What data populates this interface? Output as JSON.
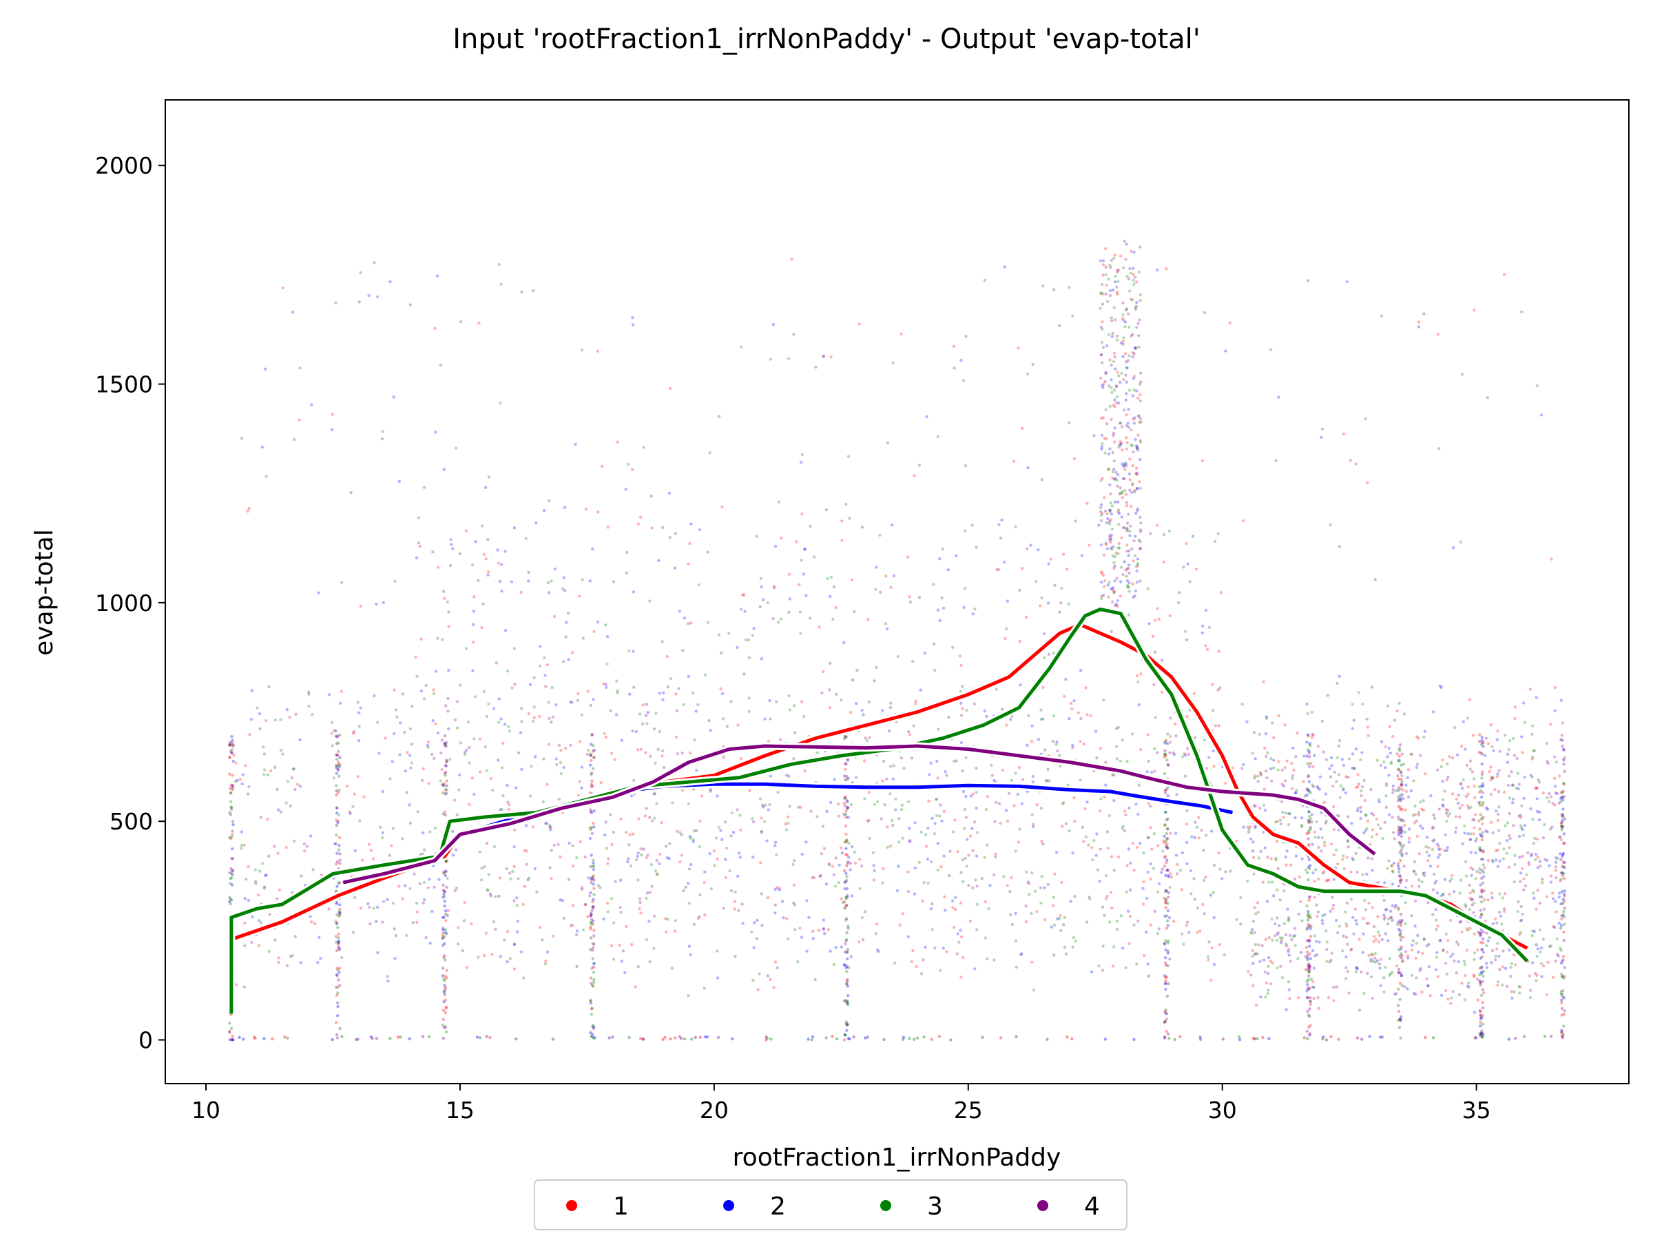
{
  "chart_data": {
    "type": "scatter",
    "title": "Input 'rootFraction1_irrNonPaddy' - Output 'evap-total'",
    "xlabel": "rootFraction1_irrNonPaddy",
    "ylabel": "evap-total",
    "xlim": [
      9.2,
      38.0
    ],
    "ylim": [
      -100,
      2150
    ],
    "xticks": [
      10,
      15,
      20,
      25,
      30,
      35
    ],
    "yticks": [
      0,
      500,
      1000,
      1500,
      2000
    ],
    "grid": false,
    "legend": {
      "placement": "bottom-center",
      "columns": 4
    },
    "series": [
      {
        "name": "1",
        "color": "#ff0000",
        "trend": [
          [
            10.5,
            230
          ],
          [
            11.5,
            270
          ],
          [
            12.6,
            330
          ],
          [
            13.5,
            370
          ],
          [
            14.7,
            420
          ],
          [
            15,
            470
          ],
          [
            16,
            500
          ],
          [
            17,
            530
          ],
          [
            18,
            560
          ],
          [
            19,
            590
          ],
          [
            20,
            605
          ],
          [
            21,
            650
          ],
          [
            22,
            690
          ],
          [
            23,
            720
          ],
          [
            24,
            750
          ],
          [
            25,
            790
          ],
          [
            25.8,
            830
          ],
          [
            26.3,
            880
          ],
          [
            26.8,
            930
          ],
          [
            27.2,
            950
          ],
          [
            27.6,
            930
          ],
          [
            28,
            910
          ],
          [
            28.5,
            880
          ],
          [
            29,
            830
          ],
          [
            29.5,
            750
          ],
          [
            30,
            650
          ],
          [
            30.3,
            570
          ],
          [
            30.6,
            510
          ],
          [
            31,
            470
          ],
          [
            31.5,
            450
          ],
          [
            32,
            400
          ],
          [
            32.5,
            360
          ],
          [
            33,
            350
          ],
          [
            33.5,
            340
          ],
          [
            34,
            330
          ],
          [
            34.5,
            310
          ],
          [
            35,
            270
          ],
          [
            35.5,
            240
          ],
          [
            36,
            210
          ]
        ]
      },
      {
        "name": "2",
        "color": "#0000ff",
        "trend": [
          [
            15,
            470
          ],
          [
            16,
            505
          ],
          [
            17,
            540
          ],
          [
            18,
            565
          ],
          [
            19,
            580
          ],
          [
            20,
            585
          ],
          [
            21,
            585
          ],
          [
            22,
            580
          ],
          [
            23,
            578
          ],
          [
            24,
            578
          ],
          [
            25,
            582
          ],
          [
            26,
            580
          ],
          [
            27,
            572
          ],
          [
            27.8,
            568
          ],
          [
            28.3,
            558
          ],
          [
            29,
            545
          ],
          [
            29.6,
            535
          ],
          [
            30.2,
            520
          ]
        ]
      },
      {
        "name": "3",
        "color": "#008000",
        "trend": [
          [
            10.5,
            60
          ],
          [
            10.5,
            280
          ],
          [
            11,
            300
          ],
          [
            11.5,
            310
          ],
          [
            12.5,
            380
          ],
          [
            13.5,
            400
          ],
          [
            14.6,
            420
          ],
          [
            14.8,
            500
          ],
          [
            15.5,
            510
          ],
          [
            16.5,
            520
          ],
          [
            17.5,
            550
          ],
          [
            18.5,
            580
          ],
          [
            19.5,
            590
          ],
          [
            20.5,
            600
          ],
          [
            21.5,
            630
          ],
          [
            22.5,
            650
          ],
          [
            23.5,
            665
          ],
          [
            24.5,
            690
          ],
          [
            25.3,
            720
          ],
          [
            26,
            760
          ],
          [
            26.6,
            850
          ],
          [
            27,
            920
          ],
          [
            27.3,
            970
          ],
          [
            27.6,
            985
          ],
          [
            28,
            975
          ],
          [
            28.5,
            870
          ],
          [
            29,
            790
          ],
          [
            29.5,
            650
          ],
          [
            30,
            480
          ],
          [
            30.5,
            400
          ],
          [
            31,
            380
          ],
          [
            31.5,
            350
          ],
          [
            32,
            340
          ],
          [
            32.5,
            340
          ],
          [
            33,
            340
          ],
          [
            33.5,
            340
          ],
          [
            34,
            330
          ],
          [
            34.5,
            300
          ],
          [
            35,
            270
          ],
          [
            35.5,
            240
          ],
          [
            36,
            180
          ]
        ]
      },
      {
        "name": "4",
        "color": "#800080",
        "trend": [
          [
            12.7,
            360
          ],
          [
            13.5,
            380
          ],
          [
            14.5,
            410
          ],
          [
            15,
            470
          ],
          [
            16,
            495
          ],
          [
            17,
            530
          ],
          [
            18,
            555
          ],
          [
            18.8,
            590
          ],
          [
            19.5,
            635
          ],
          [
            20.3,
            665
          ],
          [
            21,
            672
          ],
          [
            22,
            670
          ],
          [
            23,
            668
          ],
          [
            24,
            672
          ],
          [
            25,
            665
          ],
          [
            26,
            650
          ],
          [
            27,
            635
          ],
          [
            28,
            615
          ],
          [
            28.5,
            600
          ],
          [
            29.3,
            578
          ],
          [
            30,
            568
          ],
          [
            31,
            560
          ],
          [
            31.5,
            550
          ],
          [
            32,
            530
          ],
          [
            32.5,
            470
          ],
          [
            33,
            425
          ]
        ]
      }
    ],
    "scatter_notes": "dense semi-transparent point clouds for series 1-4 spanning x 10.5-36.7 and y 0-2050"
  }
}
